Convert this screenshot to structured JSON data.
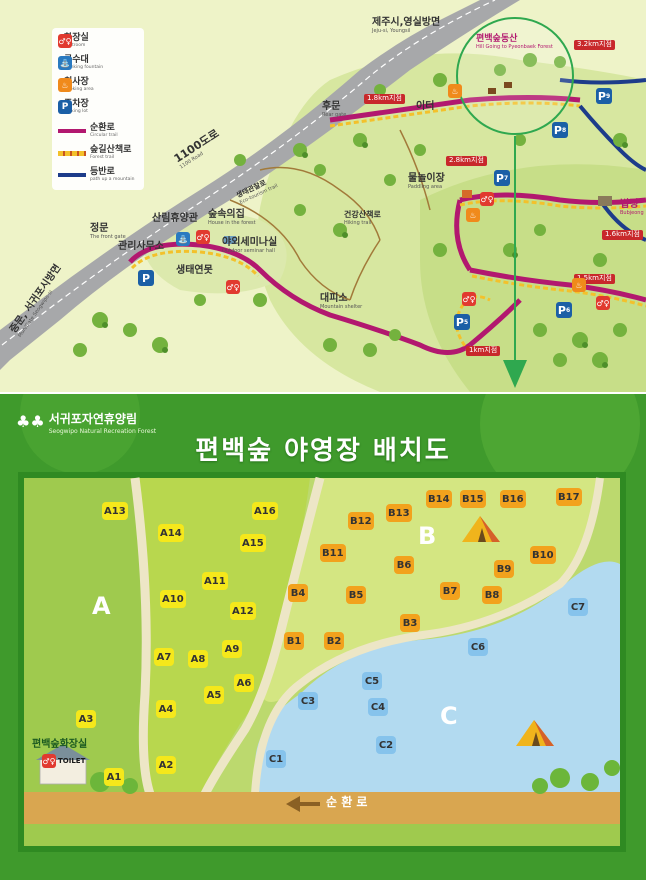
{
  "legend": {
    "items": [
      {
        "kr": "화장실",
        "en": "Restroom"
      },
      {
        "kr": "급수대",
        "en": "Drinking fountain"
      },
      {
        "kr": "취사장",
        "en": "Cooking area"
      },
      {
        "kr": "주차장",
        "en": "Parking lot"
      },
      {
        "kr": "순환로",
        "en": "Circular trail"
      },
      {
        "kr": "숲길산책로",
        "en": "Forest trail"
      },
      {
        "kr": "등반로",
        "en": "path up a mountain"
      }
    ],
    "colors": {
      "circular": "#b2186f",
      "forest": "#f3c12b",
      "mountain": "#1d3c8a"
    }
  },
  "top_map": {
    "labels": {
      "jeju": {
        "kr": "제주시,영실방면",
        "en": "Jeju-si, Youngsil"
      },
      "hill": {
        "kr": "편백숲동산",
        "en": "Hill Going to Pyeonbaek Forest"
      },
      "rear_gate": {
        "kr": "후문",
        "en": "Rear gate"
      },
      "road_1100": {
        "kr": "1100도로",
        "en": "1100 Road"
      },
      "front_gate": {
        "kr": "정문",
        "en": "The front gate"
      },
      "jungmun": {
        "kr": "중문, 서귀포시방면",
        "en": "Mun/Gate Seogwipo-si"
      },
      "eco_trail": {
        "kr": "생태관찰로",
        "en": "Eco-tourism trail"
      },
      "lodge": {
        "kr": "산림휴양관",
        "en": ""
      },
      "house": {
        "kr": "숲속의집",
        "en": "House in the forest"
      },
      "office": {
        "kr": "관리사무소",
        "en": ""
      },
      "seminar": {
        "kr": "야외세미나실",
        "en": "Outdoor seminar hall"
      },
      "eco_pond": {
        "kr": "생태연못",
        "en": ""
      },
      "water_play": {
        "kr": "물놀이장",
        "en": "Paddling area"
      },
      "hiking": {
        "kr": "건강산책로",
        "en": "Hiking trail"
      },
      "shelter": {
        "kr": "대피소",
        "en": "Mountain shelter"
      },
      "theater": {
        "kr": "이터",
        "en": ""
      },
      "bupjeong": {
        "kr": "법정",
        "en": "Bubjeong"
      }
    },
    "distances": [
      "3.2km지점",
      "1.8km지점",
      "2.8km지점",
      "1.6km지점",
      "1.5km지점",
      "1km지점"
    ],
    "parking": [
      "P",
      "P",
      "P",
      "P",
      "P",
      "P"
    ],
    "parking_nums": [
      "9",
      "8",
      "7",
      "6",
      "5",
      ""
    ]
  },
  "bottom": {
    "logo": {
      "kr": "서귀포자연휴양림",
      "en": "Seogwipo Natural Recreation Forest"
    },
    "title": "편백숲 야영장 배치도",
    "zones": {
      "a": "A",
      "b": "B",
      "c": "C"
    },
    "toilet": {
      "kr": "편백숲화장실",
      "en": "TOILET"
    },
    "road": "순 환 로",
    "sites_a": [
      "A1",
      "A2",
      "A3",
      "A4",
      "A5",
      "A6",
      "A7",
      "A8",
      "A9",
      "A10",
      "A11",
      "A12",
      "A13",
      "A14",
      "A15",
      "A16"
    ],
    "sites_b": [
      "B1",
      "B2",
      "B3",
      "B4",
      "B5",
      "B6",
      "B7",
      "B8",
      "B9",
      "B10",
      "B11",
      "B12",
      "B13",
      "B14",
      "B15",
      "B16",
      "B17"
    ],
    "sites_c": [
      "C1",
      "C2",
      "C3",
      "C4",
      "C5",
      "C6",
      "C7"
    ]
  }
}
